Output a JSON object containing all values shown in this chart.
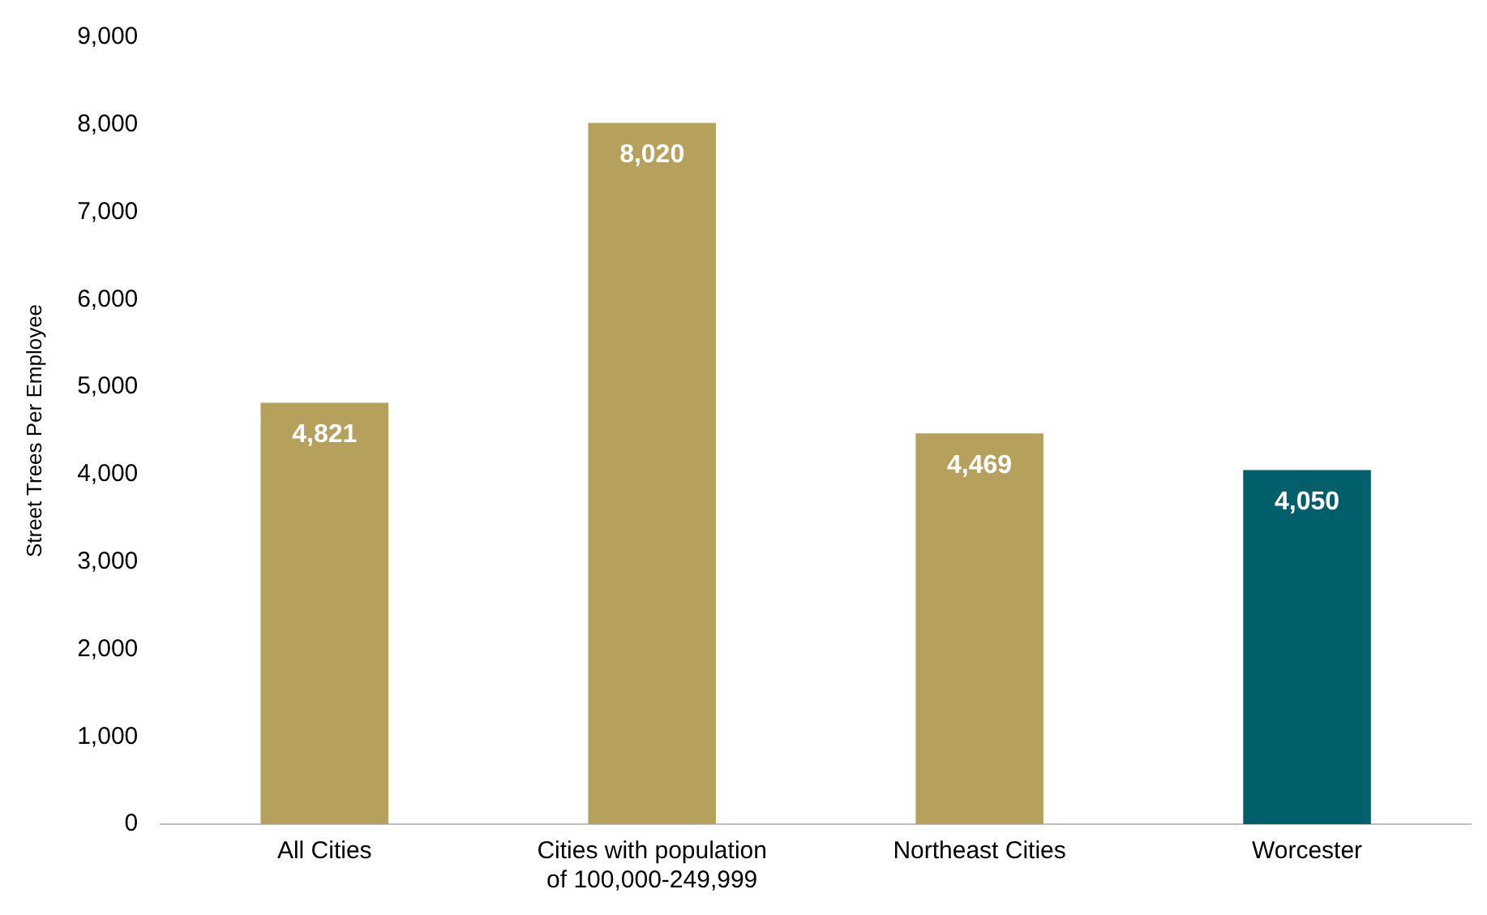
{
  "chart_data": {
    "type": "bar",
    "ylabel": "Street Trees Per Employee",
    "categories": [
      "All Cities",
      "Cities with population of 100,000-249,999",
      "Northeast Cities",
      "Worcester"
    ],
    "values": [
      4821,
      8020,
      4469,
      4050
    ],
    "colors": [
      "#b5a05c",
      "#b5a05c",
      "#b5a05c",
      "#005f6b"
    ],
    "value_labels": [
      "4,821",
      "8,020",
      "4,469",
      "4,050"
    ],
    "ylim": [
      0,
      9000
    ],
    "yticks": [
      0,
      {
        "value": 1000,
        "label": "1,000"
      },
      {
        "value": 2000,
        "label": "2,000"
      },
      {
        "value": 3000,
        "label": "3,000"
      },
      {
        "value": 4000,
        "label": "4,000"
      },
      {
        "value": 5000,
        "label": "5,000"
      },
      {
        "value": 6000,
        "label": "6,000"
      },
      {
        "value": 7000,
        "label": "7,000"
      },
      {
        "value": 8000,
        "label": "8,000"
      },
      {
        "value": 9000,
        "label": "9,000"
      }
    ],
    "grid": false,
    "legend": false
  }
}
